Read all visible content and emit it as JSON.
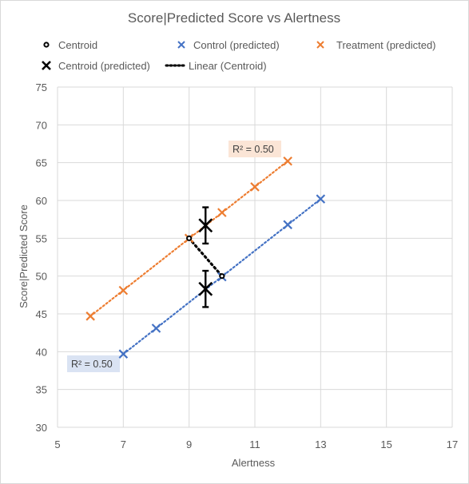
{
  "chart_data": {
    "type": "scatter",
    "title": "Score|Predicted Score vs Alertness",
    "xlabel": "Alertness",
    "ylabel": "Score|Predicted  Score",
    "xlim": [
      5,
      17
    ],
    "ylim": [
      30,
      75
    ],
    "x_ticks": [
      "5",
      "7",
      "9",
      "11",
      "13",
      "15",
      "17"
    ],
    "y_ticks": [
      "30",
      "35",
      "40",
      "45",
      "50",
      "55",
      "60",
      "65",
      "70",
      "75"
    ],
    "grid": true,
    "legend_position": "top",
    "legend": [
      {
        "key": "centroid",
        "label": "Centroid"
      },
      {
        "key": "control",
        "label": "Control (predicted)"
      },
      {
        "key": "treatment",
        "label": "Treatment (predicted)"
      },
      {
        "key": "centroid_pred",
        "label": "Centroid (predicted)"
      },
      {
        "key": "linear_centroid",
        "label": "Linear (Centroid)"
      }
    ],
    "colors": {
      "control": "#4472c4",
      "treatment": "#ed7d31",
      "centroid": "#000000"
    },
    "series": [
      {
        "name": "Control (predicted)",
        "key": "control",
        "x": [
          7,
          8,
          10,
          12,
          13
        ],
        "y": [
          39.7,
          43.1,
          49.9,
          56.8,
          60.2
        ],
        "trendline": {
          "x_range": [
            7,
            13
          ],
          "r2_label": "R² = 0.50"
        }
      },
      {
        "name": "Treatment (predicted)",
        "key": "treatment",
        "x": [
          6,
          7,
          9,
          10,
          11,
          12
        ],
        "y": [
          44.7,
          48.1,
          55.0,
          58.4,
          61.8,
          65.2
        ],
        "trendline": {
          "x_range": [
            6,
            12
          ],
          "r2_label": "R² = 0.50"
        }
      },
      {
        "name": "Centroid",
        "key": "centroid",
        "x": [
          9,
          10
        ],
        "y": [
          55.0,
          50.0
        ]
      },
      {
        "name": "Centroid (predicted)",
        "key": "centroid_pred",
        "x": [
          9.5,
          9.5
        ],
        "y": [
          56.7,
          48.3
        ],
        "error": [
          2.4,
          2.4
        ]
      }
    ],
    "linear_centroid": {
      "x": [
        9,
        10
      ],
      "y": [
        55.0,
        50.0
      ]
    }
  }
}
